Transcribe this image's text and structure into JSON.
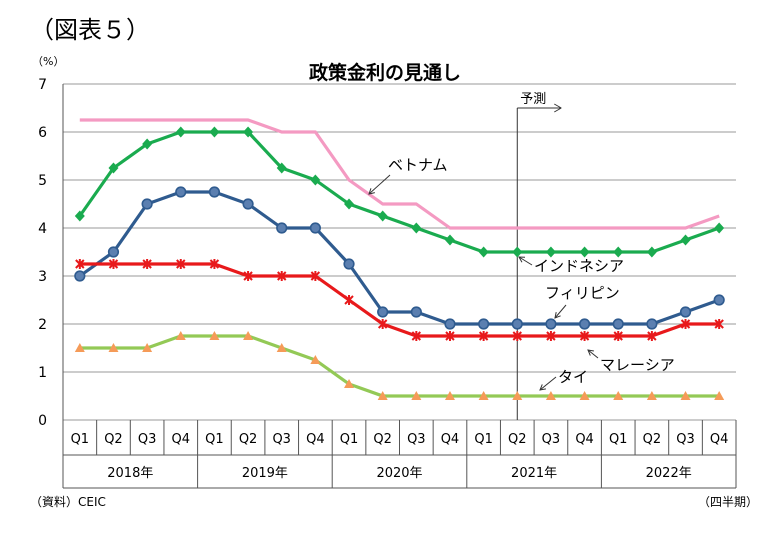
{
  "figure_label": "（図表５）",
  "source_note": "（資料）CEIC",
  "period_note": "（四半期）",
  "chart_data": {
    "type": "line",
    "title": "政策金利の見通し",
    "unit_label": "（%）",
    "ylim": [
      0,
      7
    ],
    "yticks": [
      0,
      1,
      2,
      3,
      4,
      5,
      6,
      7
    ],
    "grid": true,
    "categories": [
      "Q1",
      "Q2",
      "Q3",
      "Q4",
      "Q1",
      "Q2",
      "Q3",
      "Q4",
      "Q1",
      "Q2",
      "Q3",
      "Q4",
      "Q1",
      "Q2",
      "Q3",
      "Q4",
      "Q1",
      "Q2",
      "Q3",
      "Q4"
    ],
    "years": [
      "2018年",
      "2019年",
      "2020年",
      "2021年",
      "2022年"
    ],
    "forecast_label": "予測",
    "forecast_start_index": 13.5,
    "series": [
      {
        "name": "ベトナム",
        "color": "#f49ac2",
        "marker": "none",
        "values": [
          6.25,
          6.25,
          6.25,
          6.25,
          6.25,
          6.25,
          6.0,
          6.0,
          5.0,
          4.5,
          4.5,
          4.0,
          4.0,
          4.0,
          4.0,
          4.0,
          4.0,
          4.0,
          4.0,
          4.25
        ]
      },
      {
        "name": "インドネシア",
        "color": "#1aab4f",
        "marker": "diamond",
        "values": [
          4.25,
          5.25,
          5.75,
          6.0,
          6.0,
          6.0,
          5.25,
          5.0,
          4.5,
          4.25,
          4.0,
          3.75,
          3.5,
          3.5,
          3.5,
          3.5,
          3.5,
          3.5,
          3.75,
          4.0
        ]
      },
      {
        "name": "フィリピン",
        "color": "#2f5b8f",
        "marker": "circle",
        "values": [
          3.0,
          3.5,
          4.5,
          4.75,
          4.75,
          4.5,
          4.0,
          4.0,
          3.25,
          2.25,
          2.25,
          2.0,
          2.0,
          2.0,
          2.0,
          2.0,
          2.0,
          2.0,
          2.25,
          2.5
        ]
      },
      {
        "name": "マレーシア",
        "color": "#e8191b",
        "marker": "star",
        "values": [
          3.25,
          3.25,
          3.25,
          3.25,
          3.25,
          3.0,
          3.0,
          3.0,
          2.5,
          2.0,
          1.75,
          1.75,
          1.75,
          1.75,
          1.75,
          1.75,
          1.75,
          1.75,
          2.0,
          2.0
        ]
      },
      {
        "name": "タイ",
        "color": "#93c956",
        "marker": "triangle",
        "marker_color": "#f59b58",
        "values": [
          1.5,
          1.5,
          1.5,
          1.75,
          1.75,
          1.75,
          1.5,
          1.25,
          0.75,
          0.5,
          0.5,
          0.5,
          0.5,
          0.5,
          0.5,
          0.5,
          0.5,
          0.5,
          0.5,
          0.5
        ]
      }
    ],
    "annotations": [
      "ベトナム",
      "インドネシア",
      "フィリピン",
      "マレーシア",
      "タイ"
    ]
  }
}
